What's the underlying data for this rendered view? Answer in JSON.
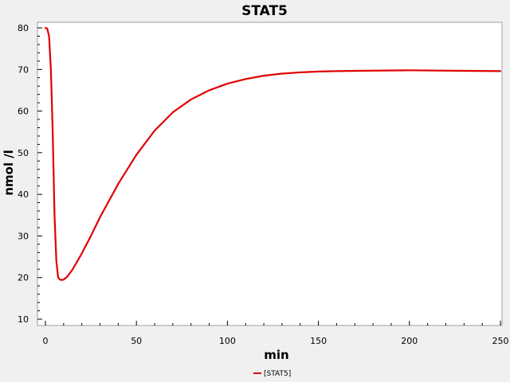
{
  "chart_data": {
    "type": "line",
    "title": "STAT5",
    "xlabel": "min",
    "ylabel": "nmol /l",
    "xlim": [
      0,
      250
    ],
    "ylim": [
      10,
      80
    ],
    "x_ticks": [
      0,
      50,
      100,
      150,
      200,
      250
    ],
    "y_ticks": [
      10,
      20,
      30,
      40,
      50,
      60,
      70,
      80
    ],
    "grid": false,
    "legend_position": "bottom-center",
    "series": [
      {
        "name": "[STAT5]",
        "color": "#e00000",
        "x": [
          0,
          1,
          2,
          3,
          4,
          5,
          6,
          7,
          8,
          9,
          10,
          12,
          15,
          20,
          25,
          30,
          40,
          50,
          60,
          70,
          80,
          90,
          100,
          110,
          120,
          130,
          140,
          150,
          160,
          175,
          200,
          225,
          250
        ],
        "y": [
          80,
          79.8,
          78,
          70,
          55,
          35,
          24,
          20,
          19.5,
          19.4,
          19.5,
          20.2,
          22,
          25.8,
          30,
          34.5,
          42.5,
          49.5,
          55.3,
          59.7,
          62.8,
          65,
          66.6,
          67.7,
          68.5,
          69,
          69.3,
          69.5,
          69.6,
          69.7,
          69.8,
          69.7,
          69.6
        ]
      }
    ]
  }
}
